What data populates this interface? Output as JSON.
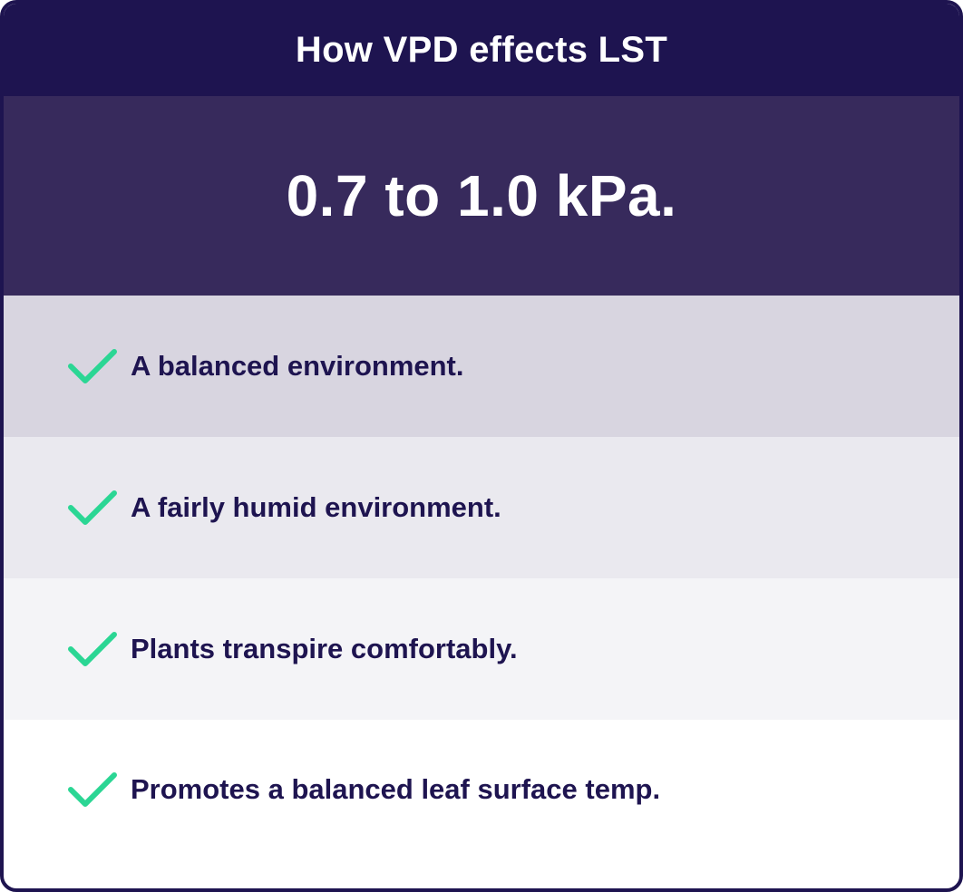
{
  "header": {
    "title": "How VPD effects LST"
  },
  "range": {
    "value": "0.7 to 1.0 kPa."
  },
  "items": [
    {
      "label": "A balanced environment.",
      "icon": "check-icon"
    },
    {
      "label": "A fairly humid environment.",
      "icon": "check-icon"
    },
    {
      "label": "Plants transpire comfortably.",
      "icon": "check-icon"
    },
    {
      "label": "Promotes a balanced leaf surface temp.",
      "icon": "check-icon"
    }
  ],
  "colors": {
    "header_bg": "#1e1450",
    "range_bg": "#372a5c",
    "check": "#2bd694",
    "text_dark": "#1e1450"
  }
}
